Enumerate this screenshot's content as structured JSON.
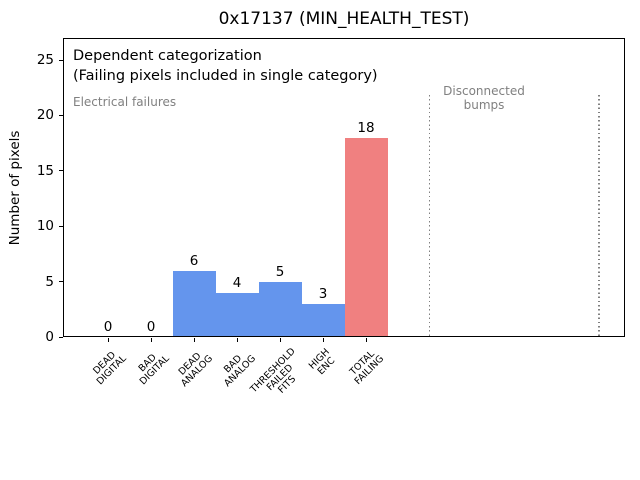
{
  "chart_data": {
    "type": "bar",
    "title": "0x17137 (MIN_HEALTH_TEST)",
    "xlabel": "",
    "ylabel": "Number of pixels",
    "categories": [
      "DEAD\nDIGITAL",
      "BAD\nDIGITAL",
      "DEAD\nANALOG",
      "BAD\nANALOG",
      "THRESHOLD\nFAILED\nFITS",
      "HIGH\nENC",
      "TOTAL\nFAILING"
    ],
    "values": [
      0,
      0,
      6,
      4,
      5,
      3,
      18
    ],
    "value_labels": [
      "0",
      "0",
      "6",
      "4",
      "5",
      "3",
      "18"
    ],
    "bar_colors": [
      "#6495ed",
      "#6495ed",
      "#6495ed",
      "#6495ed",
      "#6495ed",
      "#6495ed",
      "#f08080"
    ],
    "yticks": [
      0,
      5,
      10,
      15,
      20,
      25
    ],
    "ylim": [
      0,
      27
    ],
    "grid": false,
    "legend": "none",
    "annotations": [
      {
        "id": "categorization-note",
        "lines": [
          "Dependent categorization",
          "(Failing pixels included in single category)"
        ],
        "color": "#000000"
      },
      {
        "id": "electrical-failures-label",
        "text": "Electrical failures",
        "color": "#808080"
      },
      {
        "id": "disconnected-bumps-label",
        "lines": [
          "Disconnected",
          "bumps"
        ],
        "color": "#808080"
      }
    ],
    "vlines": {
      "x": [
        7.48,
        11.42
      ],
      "ymax": 21.8,
      "style": "dotted",
      "color": "#7f7f7f"
    },
    "colors": {
      "electrical_bar": "#6495ed",
      "total_bar": "#f08080",
      "muted_text": "#808080",
      "axis": "#000000"
    }
  }
}
